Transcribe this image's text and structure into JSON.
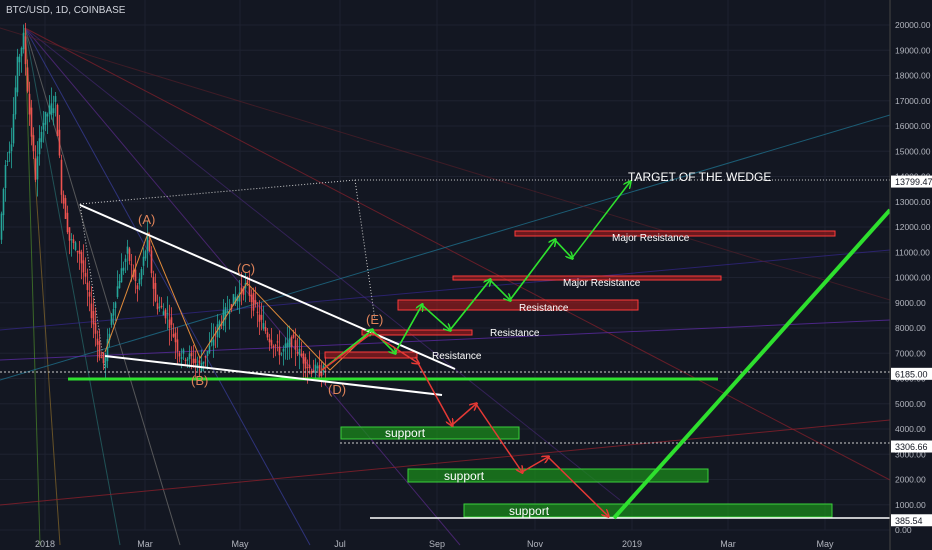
{
  "header": {
    "symbol_label": "BTC/USD, 1D, COINBASE"
  },
  "chart_data": {
    "type": "candlestick",
    "symbol": "BTC/USD",
    "interval": "1D",
    "exchange": "COINBASE",
    "y_ticks": [
      20000,
      19000,
      18000,
      17000,
      16000,
      15000,
      14000,
      13000,
      12000,
      11000,
      10000,
      9000,
      8000,
      7000,
      6000,
      5000,
      4000,
      3000,
      2000,
      1000,
      0
    ],
    "y_tick_labels": [
      "20000.00",
      "19000.00",
      "18000.00",
      "17000.00",
      "16000.00",
      "15000.00",
      "14000.00",
      "13000.00",
      "12000.00",
      "11000.00",
      "10000.00",
      "9000.00",
      "8000.00",
      "7000.00",
      "6000.00",
      "5000.00",
      "4000.00",
      "3000.00",
      "2000.00",
      "1000.00",
      "0.00"
    ],
    "ylim": [
      0,
      20000
    ],
    "x_tick_labels": [
      "2018",
      "Mar",
      "May",
      "Jul",
      "Sep",
      "Nov",
      "2019",
      "Mar",
      "May"
    ],
    "price_markers": [
      {
        "label": "13799.47",
        "value": 13799.47
      },
      {
        "label": "6185.00",
        "value": 6185
      },
      {
        "label": "3306.66",
        "value": 3306.66
      },
      {
        "label": "385.54",
        "value": 385.54
      }
    ],
    "wave_labels": [
      "(A)",
      "(B)",
      "(C)",
      "(D)",
      "(E)"
    ],
    "annotations": {
      "target": "TARGET OF THE WEDGE",
      "major_resistance_1": "Major Resistance",
      "major_resistance_2": "Major Resistance",
      "resistance_1": "Resistance",
      "resistance_2": "Resistance",
      "resistance_3": "Resistance",
      "support_1": "support",
      "support_2": "support",
      "support_3": "support"
    },
    "resistance_zones": [
      {
        "from": 11600,
        "to": 11800
      },
      {
        "from": 9900,
        "to": 10050
      },
      {
        "from": 8600,
        "to": 9050
      },
      {
        "from": 7600,
        "to": 7800
      },
      {
        "from": 6700,
        "to": 6900
      }
    ],
    "support_zones": [
      {
        "from": 3550,
        "to": 4050
      },
      {
        "from": 1800,
        "to": 2300
      },
      {
        "from": 400,
        "to": 950
      }
    ],
    "colors": {
      "background": "#131722",
      "candle_up": "#26a69a",
      "candle_down": "#ef5350",
      "resistance": "#d32f2f",
      "support": "#2e7d32",
      "arrow_up": "#2ee02e",
      "arrow_down": "#e53935",
      "trendline": "#ffffff",
      "axis_text": "#b2b5be"
    }
  }
}
